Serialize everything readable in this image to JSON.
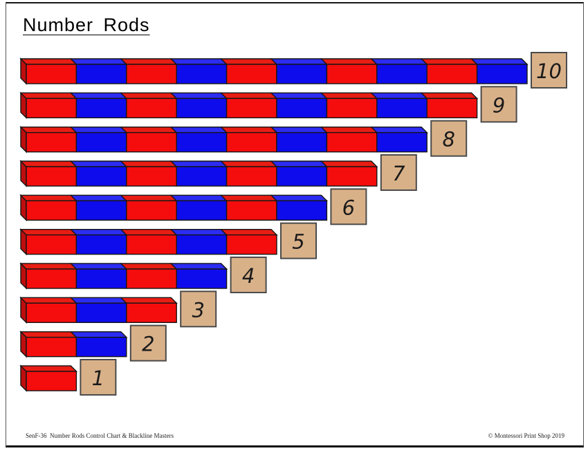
{
  "title": "Number Rods",
  "footer": {
    "left": "SenF-36  Number Rods Control Chart & Blackline Masters",
    "right": "© Montessori Print Shop 2019"
  },
  "chart_data": {
    "type": "montessori-number-rods-control-chart",
    "description": "Ten stair-stepped rods, each rod n made of n alternating red/blue unit segments starting with red, with a tan square label tile showing the rod number.",
    "rods": [
      {
        "value": 10,
        "label": "10",
        "segments": [
          "red",
          "blue",
          "red",
          "blue",
          "red",
          "blue",
          "red",
          "blue",
          "red",
          "blue"
        ]
      },
      {
        "value": 9,
        "label": "9",
        "segments": [
          "red",
          "blue",
          "red",
          "blue",
          "red",
          "blue",
          "red",
          "blue",
          "red"
        ]
      },
      {
        "value": 8,
        "label": "8",
        "segments": [
          "red",
          "blue",
          "red",
          "blue",
          "red",
          "blue",
          "red",
          "blue"
        ]
      },
      {
        "value": 7,
        "label": "7",
        "segments": [
          "red",
          "blue",
          "red",
          "blue",
          "red",
          "blue",
          "red"
        ]
      },
      {
        "value": 6,
        "label": "6",
        "segments": [
          "red",
          "blue",
          "red",
          "blue",
          "red",
          "blue"
        ]
      },
      {
        "value": 5,
        "label": "5",
        "segments": [
          "red",
          "blue",
          "red",
          "blue",
          "red"
        ]
      },
      {
        "value": 4,
        "label": "4",
        "segments": [
          "red",
          "blue",
          "red",
          "blue"
        ]
      },
      {
        "value": 3,
        "label": "3",
        "segments": [
          "red",
          "blue",
          "red"
        ]
      },
      {
        "value": 2,
        "label": "2",
        "segments": [
          "red",
          "blue"
        ]
      },
      {
        "value": 1,
        "label": "1",
        "segments": [
          "red"
        ]
      }
    ]
  },
  "colors": {
    "red_front": "#f50d0d",
    "red_top": "#e81d13",
    "red_side": "#bd0d0d",
    "blue_front": "#0e0cec",
    "blue_top": "#2c2cf2",
    "outline": "#151515",
    "tile_bg": "#d9b189",
    "tile_border": "#4a4a4a",
    "tile_text": "#1a1a1a",
    "page_border": "#555555"
  }
}
